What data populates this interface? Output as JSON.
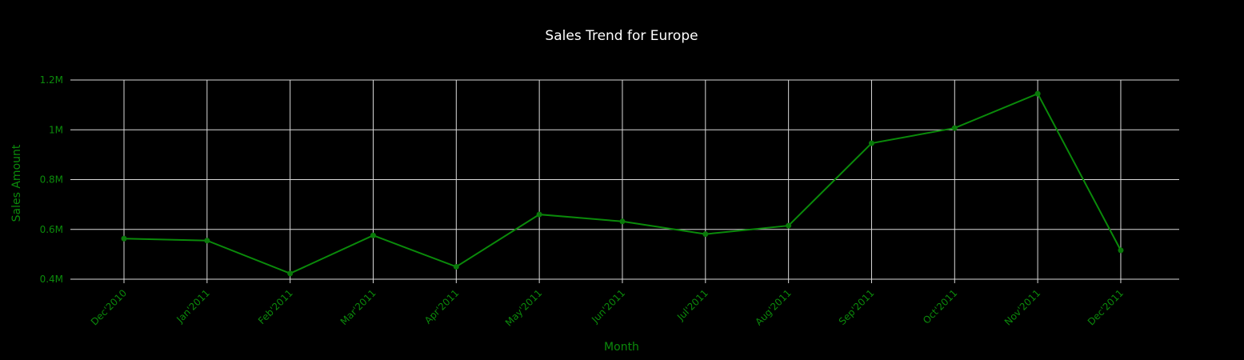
{
  "chart_data": {
    "type": "line",
    "title": "Sales Trend for Europe",
    "xlabel": "Month",
    "ylabel": "Sales Amount",
    "categories": [
      "Dec'2010",
      "Jan'2011",
      "Feb'2011",
      "Mar'2011",
      "Apr'2011",
      "May'2011",
      "Jun'2011",
      "Jul'2011",
      "Aug'2011",
      "Sep'2011",
      "Oct'2011",
      "Nov'2011",
      "Dec'2011"
    ],
    "series": [
      {
        "values": [
          563000,
          555000,
          423000,
          576000,
          450000,
          660000,
          632000,
          581000,
          615000,
          946000,
          1007000,
          1145000,
          516000
        ]
      }
    ],
    "ylim": [
      400000,
      1200000
    ],
    "yticks": [
      400000,
      600000,
      800000,
      1000000,
      1200000
    ],
    "ytick_labels": [
      "0.4M",
      "0.6M",
      "0.8M",
      "1M",
      "1.2M"
    ],
    "grid": true,
    "legend": "none",
    "colors": {
      "line": "#0a8a0a",
      "marker": "#0a7a0a",
      "axis_text": "#0b8a0b",
      "title": "#ffffff",
      "grid": "#d9d9d9",
      "background": "#000000"
    }
  }
}
